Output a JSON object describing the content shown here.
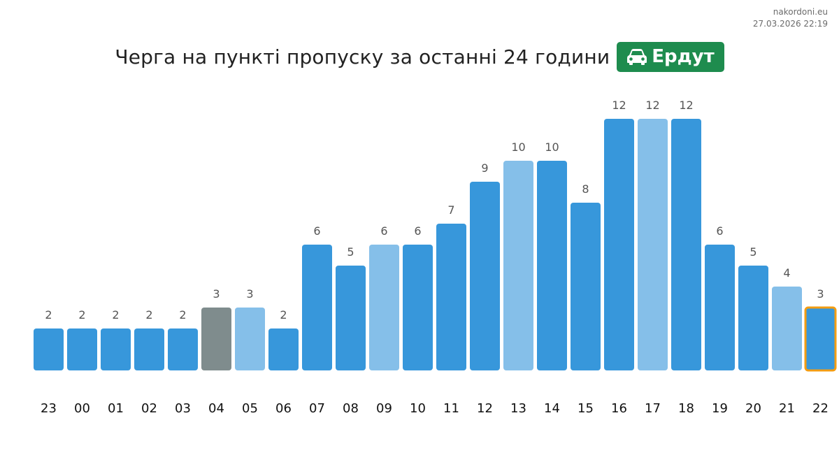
{
  "watermark": {
    "site": "nakordoni.eu",
    "datetime": "27.03.2026 22:19"
  },
  "header": {
    "title": "Черга на пункті пропуску за останні 24 години",
    "badge_label": "Ердут",
    "badge_icon": "car-icon",
    "badge_color": "#1e8c4e"
  },
  "colors": {
    "bar_default": "#3797db",
    "bar_light": "#85bfe9",
    "bar_gray": "#7f8c8d",
    "current_outline": "#f39c12",
    "value_label": "#555555",
    "tick_label": "#111111"
  },
  "chart_data": {
    "type": "bar",
    "title": "Черга на пункті пропуску за останні 24 години",
    "xlabel": "",
    "ylabel": "",
    "ylim": [
      0,
      12
    ],
    "grid": false,
    "legend": "none",
    "categories": [
      "23",
      "00",
      "01",
      "02",
      "03",
      "04",
      "05",
      "06",
      "07",
      "08",
      "09",
      "10",
      "11",
      "12",
      "13",
      "14",
      "15",
      "16",
      "17",
      "18",
      "19",
      "20",
      "21",
      "22"
    ],
    "values": [
      2,
      2,
      2,
      2,
      2,
      3,
      3,
      2,
      6,
      5,
      6,
      6,
      7,
      9,
      10,
      10,
      8,
      12,
      12,
      12,
      6,
      5,
      4,
      3
    ],
    "bar_styles": [
      "default",
      "default",
      "default",
      "default",
      "default",
      "gray",
      "light",
      "default",
      "default",
      "default",
      "light",
      "default",
      "default",
      "default",
      "light",
      "default",
      "default",
      "default",
      "light",
      "default",
      "default",
      "default",
      "light",
      "current"
    ]
  }
}
